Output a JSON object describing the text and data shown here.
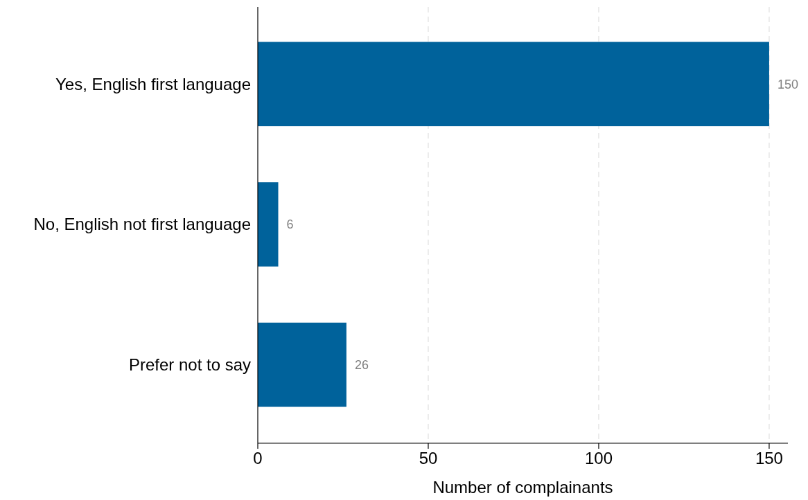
{
  "chart_data": {
    "type": "bar",
    "orientation": "horizontal",
    "categories": [
      "Yes, English first language",
      "No, English not first language",
      "Prefer not to say"
    ],
    "values": [
      150,
      6,
      26
    ],
    "color": "#00629b",
    "xlabel": "Number of complainants",
    "xlim": [
      0,
      155.5
    ],
    "xticks": [
      0,
      50,
      100,
      150
    ],
    "grid": "x",
    "data_labels": true
  }
}
